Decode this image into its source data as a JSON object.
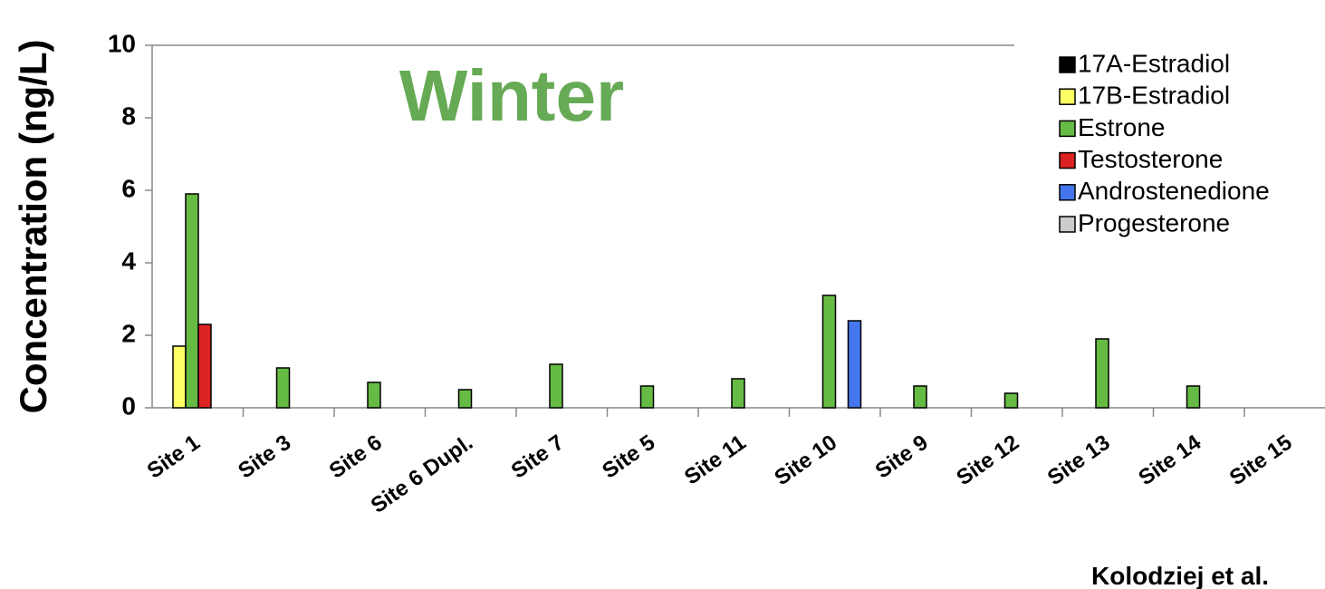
{
  "chart_data": {
    "type": "bar",
    "title": "Winter",
    "y_label": "Concentration (ng/L)",
    "source": "Kolodziej et al.",
    "categories": [
      "Site 1",
      "Site 3",
      "Site 6",
      "Site 6 Dupl.",
      "Site 7",
      "Site 5",
      "Site 11",
      "Site 10",
      "Site 9",
      "Site 12",
      "Site 13",
      "Site 14",
      "Site 15"
    ],
    "series": [
      {
        "name": "17A-Estradiol",
        "color": "#000000",
        "values": [
          0,
          0,
          0,
          0,
          0,
          0,
          0,
          0,
          0,
          0,
          0,
          0,
          0
        ]
      },
      {
        "name": "17B-Estradiol",
        "color": "#ffff66",
        "values": [
          1.7,
          0,
          0,
          0,
          0,
          0,
          0,
          0,
          0,
          0,
          0,
          0,
          0
        ]
      },
      {
        "name": "Estrone",
        "color": "#66bb44",
        "values": [
          5.9,
          1.1,
          0.7,
          0.5,
          1.2,
          0.6,
          0.8,
          3.1,
          0.6,
          0.4,
          1.9,
          0.6,
          0
        ]
      },
      {
        "name": "Testosterone",
        "color": "#dd2222",
        "values": [
          2.3,
          0,
          0,
          0,
          0,
          0,
          0,
          0,
          0,
          0,
          0,
          0,
          0
        ]
      },
      {
        "name": "Androstenedione",
        "color": "#4477ee",
        "values": [
          0,
          0,
          0,
          0,
          0,
          0,
          0,
          2.4,
          0,
          0,
          0,
          0,
          0
        ]
      },
      {
        "name": "Progesterone",
        "color": "#cccccc",
        "values": [
          0,
          0,
          0,
          0,
          0,
          0,
          0,
          0,
          0,
          0,
          0,
          0,
          0
        ]
      }
    ],
    "ylim": [
      0,
      10
    ],
    "yticks": [
      0,
      2,
      4,
      6,
      8,
      10
    ],
    "legend": "upper right",
    "title_color": "#66aa55"
  }
}
